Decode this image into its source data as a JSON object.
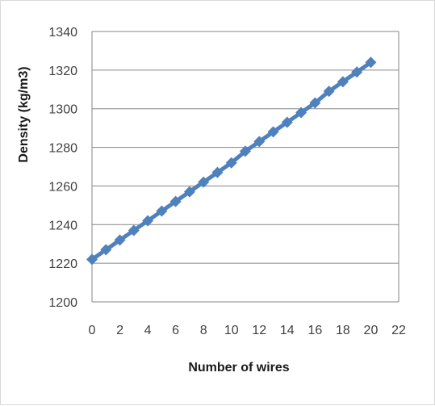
{
  "chart_data": {
    "type": "line",
    "title": "",
    "xlabel": "Number of wires",
    "ylabel": "Density (kg/m3)",
    "xlim": [
      0,
      22
    ],
    "ylim": [
      1200,
      1340
    ],
    "x_ticks": [
      "0",
      "2",
      "4",
      "6",
      "8",
      "10",
      "12",
      "14",
      "16",
      "18",
      "20",
      "22"
    ],
    "y_ticks": [
      "1200",
      "1220",
      "1240",
      "1260",
      "1280",
      "1300",
      "1320",
      "1340"
    ],
    "grid": "horizontal",
    "legend": "none",
    "series": [
      {
        "color": "#4f81bd",
        "marker": "diamond",
        "x": [
          0,
          1,
          2,
          3,
          4,
          5,
          6,
          7,
          8,
          9,
          10,
          11,
          12,
          13,
          14,
          15,
          16,
          17,
          18,
          19,
          20
        ],
        "y": [
          1222,
          1227,
          1232,
          1237,
          1242,
          1247,
          1252,
          1257,
          1262,
          1267,
          1272,
          1278,
          1283,
          1288,
          1293,
          1298,
          1303,
          1309,
          1314,
          1319,
          1324
        ]
      }
    ]
  }
}
